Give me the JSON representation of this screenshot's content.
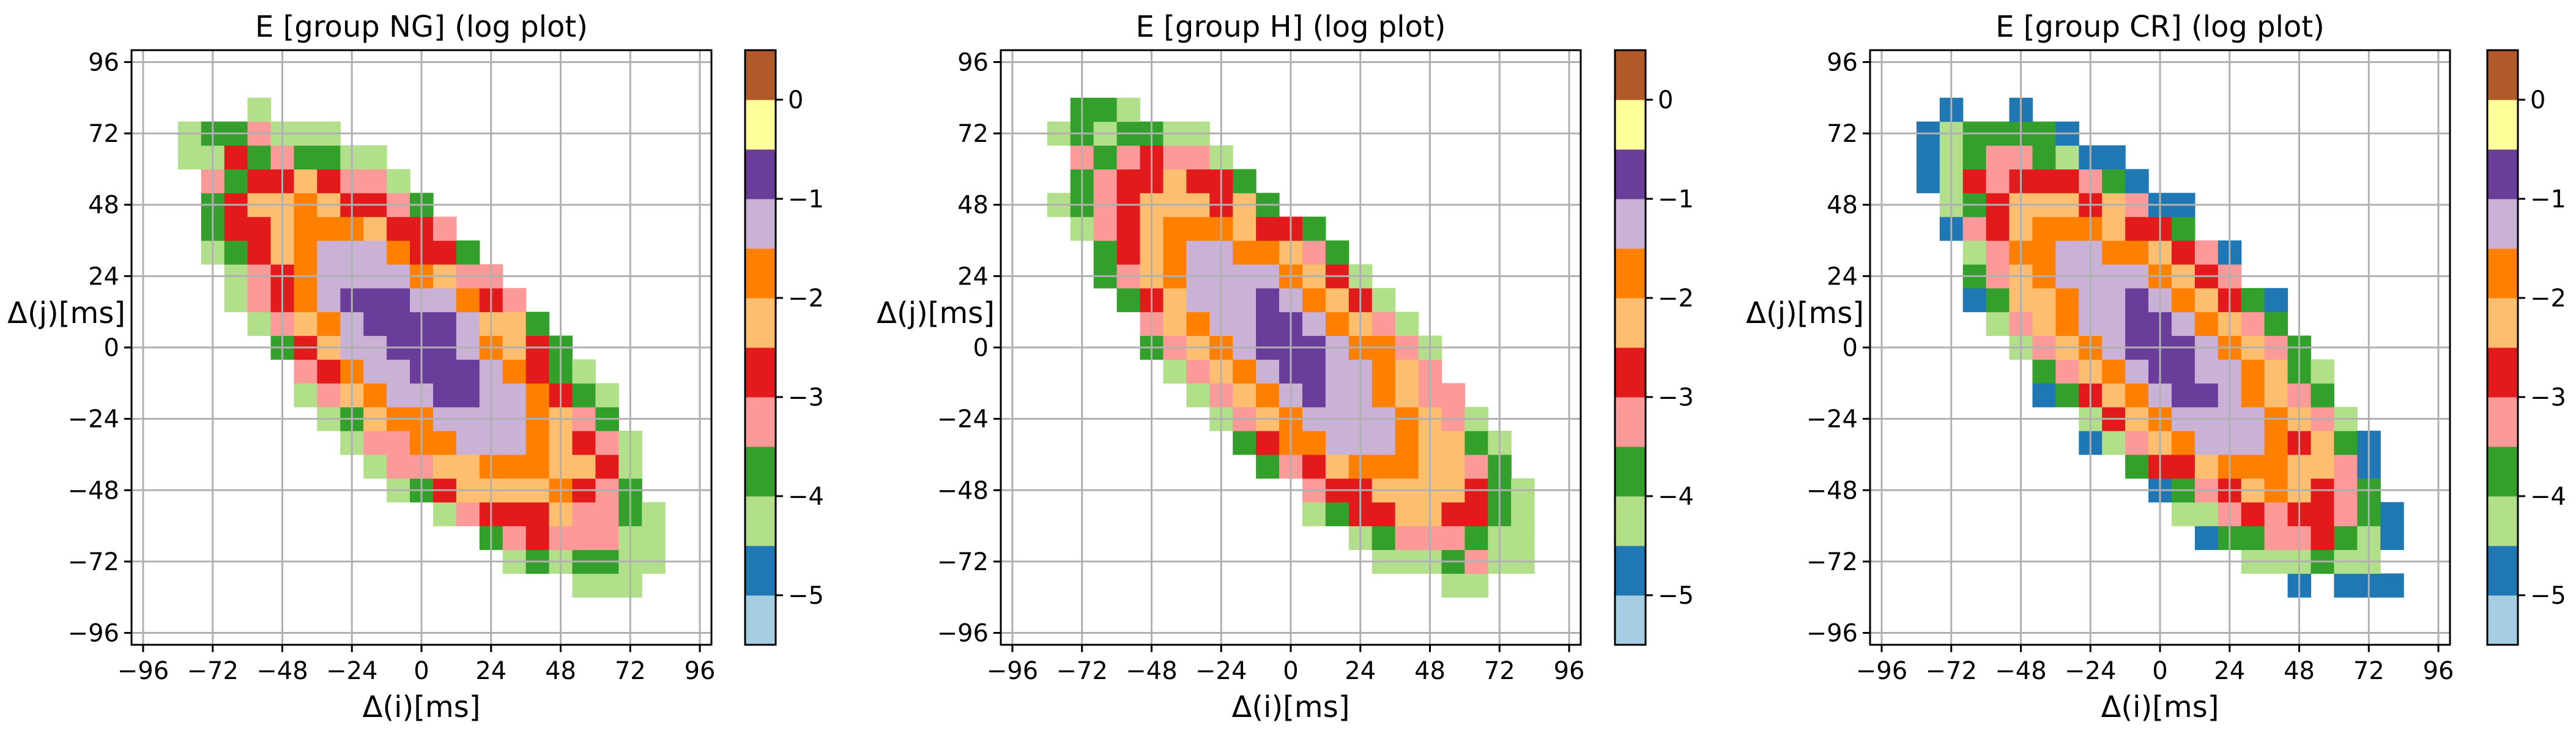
{
  "chart_data": [
    {
      "type": "contour",
      "title": "E [group NG]  (log plot)",
      "xlabel": "Δ(i)[ms]",
      "ylabel": "Δ(j)[ms]",
      "xlim": [
        -100,
        100
      ],
      "ylim": [
        -100,
        100
      ],
      "xticks": [
        "−96",
        "−72",
        "−48",
        "−24",
        "0",
        "24",
        "48",
        "72",
        "96"
      ],
      "yticks": [
        "−96",
        "−72",
        "−48",
        "−24",
        "0",
        "24",
        "48",
        "72",
        "96"
      ],
      "grid": true,
      "colorbar_ticks": [
        "−5",
        "−4",
        "−3",
        "−2",
        "−1",
        "0"
      ],
      "levels_log": [
        -5.5,
        -5.0,
        -4.5,
        -4.0,
        -3.5,
        -3.0,
        -2.5,
        -2.0,
        -1.5,
        -1.0,
        -0.5,
        0.0,
        0.5
      ],
      "peak_log": -0.75,
      "spread_major_ms": 60,
      "spread_minor_ms": 22,
      "min_visible_level": -4.5,
      "orientation_deg": -45
    },
    {
      "type": "contour",
      "title": "E [group H]  (log plot)",
      "xlabel": "Δ(i)[ms]",
      "ylabel": "Δ(j)[ms]",
      "xlim": [
        -100,
        100
      ],
      "ylim": [
        -100,
        100
      ],
      "xticks": [
        "−96",
        "−72",
        "−48",
        "−24",
        "0",
        "24",
        "48",
        "72",
        "96"
      ],
      "yticks": [
        "−96",
        "−72",
        "−48",
        "−24",
        "0",
        "24",
        "48",
        "72",
        "96"
      ],
      "grid": true,
      "colorbar_ticks": [
        "−5",
        "−4",
        "−3",
        "−2",
        "−1",
        "0"
      ],
      "levels_log": [
        -5.5,
        -5.0,
        -4.5,
        -4.0,
        -3.5,
        -3.0,
        -2.5,
        -2.0,
        -1.5,
        -1.0,
        -0.5,
        0.0,
        0.5
      ],
      "peak_log": -0.85,
      "spread_major_ms": 62,
      "spread_minor_ms": 21,
      "min_visible_level": -4.5,
      "orientation_deg": -45
    },
    {
      "type": "contour",
      "title": "E [group CR]  (log plot)",
      "xlabel": "Δ(i)[ms]",
      "ylabel": "Δ(j)[ms]",
      "xlim": [
        -100,
        100
      ],
      "ylim": [
        -100,
        100
      ],
      "xticks": [
        "−96",
        "−72",
        "−48",
        "−24",
        "0",
        "24",
        "48",
        "72",
        "96"
      ],
      "yticks": [
        "−96",
        "−72",
        "−48",
        "−24",
        "0",
        "24",
        "48",
        "72",
        "96"
      ],
      "grid": true,
      "colorbar_ticks": [
        "−5",
        "−4",
        "−3",
        "−2",
        "−1",
        "0"
      ],
      "levels_log": [
        -5.5,
        -5.0,
        -4.5,
        -4.0,
        -3.5,
        -3.0,
        -2.5,
        -2.0,
        -1.5,
        -1.0,
        -0.5,
        0.0,
        0.5
      ],
      "peak_log": -0.8,
      "spread_major_ms": 58,
      "spread_minor_ms": 21,
      "min_visible_level": -5.0,
      "orientation_deg": -45
    }
  ],
  "colors": {
    "levels": [
      "#a6cee3",
      "#1f78b4",
      "#b2df8a",
      "#33a02c",
      "#fb9a99",
      "#e31a1c",
      "#fdbf6f",
      "#ff7f00",
      "#cab2d6",
      "#6a3d9a",
      "#ffff99",
      "#b15928"
    ],
    "grid": "#b0b0b0",
    "axis": "#000000"
  }
}
